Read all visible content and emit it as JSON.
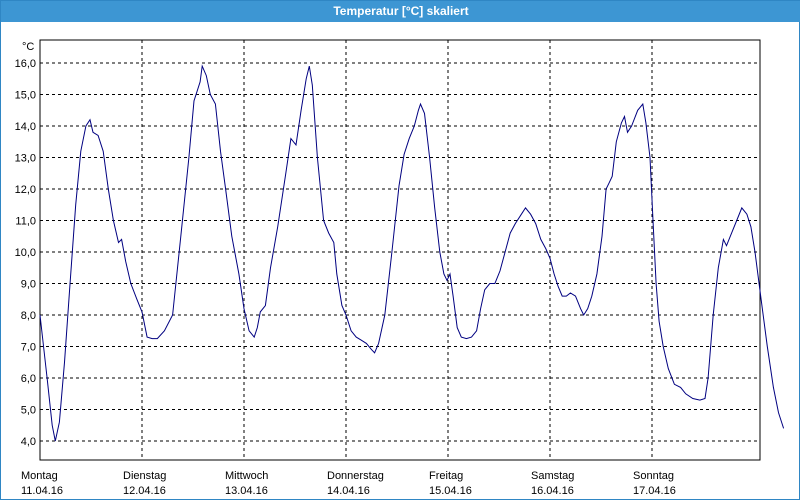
{
  "window": {
    "title": "Temperatur [°C] skaliert"
  },
  "chart_data": {
    "type": "line",
    "title": "Temperatur [°C] skaliert",
    "ylabel": "°C",
    "xlabel": "",
    "ylim": [
      3.4,
      16.5
    ],
    "xlim": [
      0,
      7
    ],
    "grid": true,
    "yticks": [
      "4,0",
      "5,0",
      "6,0",
      "7,0",
      "8,0",
      "9,0",
      "10,0",
      "11,0",
      "12,0",
      "13,0",
      "14,0",
      "15,0",
      "16,0"
    ],
    "days": [
      {
        "name": "Montag",
        "date": "11.04.16"
      },
      {
        "name": "Dienstag",
        "date": "12.04.16"
      },
      {
        "name": "Mittwoch",
        "date": "13.04.16"
      },
      {
        "name": "Donnerstag",
        "date": "14.04.16"
      },
      {
        "name": "Freitag",
        "date": "15.04.16"
      },
      {
        "name": "Samstag",
        "date": "16.04.16"
      },
      {
        "name": "Sonntag",
        "date": "17.04.16"
      }
    ],
    "series": [
      {
        "color": "#000080",
        "points": [
          [
            0.0,
            8.0
          ],
          [
            0.07,
            6.0
          ],
          [
            0.12,
            4.5
          ],
          [
            0.15,
            4.0
          ],
          [
            0.19,
            4.6
          ],
          [
            0.24,
            6.5
          ],
          [
            0.29,
            8.8
          ],
          [
            0.35,
            11.5
          ],
          [
            0.4,
            13.2
          ],
          [
            0.45,
            14.0
          ],
          [
            0.49,
            14.2
          ],
          [
            0.52,
            13.8
          ],
          [
            0.57,
            13.7
          ],
          [
            0.62,
            13.2
          ],
          [
            0.67,
            12.0
          ],
          [
            0.72,
            11.0
          ],
          [
            0.77,
            10.3
          ],
          [
            0.8,
            10.4
          ],
          [
            0.84,
            9.7
          ],
          [
            0.89,
            9.0
          ],
          [
            0.95,
            8.5
          ],
          [
            1.0,
            8.1
          ],
          [
            1.05,
            7.3
          ],
          [
            1.1,
            7.25
          ],
          [
            1.15,
            7.25
          ],
          [
            1.22,
            7.5
          ],
          [
            1.3,
            8.0
          ],
          [
            1.38,
            10.5
          ],
          [
            1.46,
            13.0
          ],
          [
            1.51,
            14.8
          ],
          [
            1.57,
            15.4
          ],
          [
            1.59,
            15.9
          ],
          [
            1.63,
            15.6
          ],
          [
            1.67,
            15.0
          ],
          [
            1.72,
            14.7
          ],
          [
            1.77,
            13.2
          ],
          [
            1.82,
            12.0
          ],
          [
            1.88,
            10.5
          ],
          [
            1.95,
            9.3
          ],
          [
            2.0,
            8.2
          ],
          [
            2.05,
            7.5
          ],
          [
            2.1,
            7.3
          ],
          [
            2.13,
            7.6
          ],
          [
            2.16,
            8.1
          ],
          [
            2.21,
            8.3
          ],
          [
            2.26,
            9.5
          ],
          [
            2.33,
            10.8
          ],
          [
            2.41,
            12.5
          ],
          [
            2.46,
            13.6
          ],
          [
            2.51,
            13.4
          ],
          [
            2.56,
            14.5
          ],
          [
            2.61,
            15.5
          ],
          [
            2.64,
            15.9
          ],
          [
            2.67,
            15.3
          ],
          [
            2.72,
            13.0
          ],
          [
            2.78,
            11.0
          ],
          [
            2.83,
            10.6
          ],
          [
            2.88,
            10.3
          ],
          [
            2.91,
            9.3
          ],
          [
            2.96,
            8.3
          ],
          [
            3.0,
            8.0
          ],
          [
            3.05,
            7.5
          ],
          [
            3.1,
            7.3
          ],
          [
            3.15,
            7.2
          ],
          [
            3.2,
            7.1
          ],
          [
            3.25,
            6.9
          ],
          [
            3.28,
            6.8
          ],
          [
            3.32,
            7.1
          ],
          [
            3.38,
            8.0
          ],
          [
            3.45,
            10.0
          ],
          [
            3.52,
            12.1
          ],
          [
            3.57,
            13.1
          ],
          [
            3.62,
            13.6
          ],
          [
            3.67,
            14.0
          ],
          [
            3.71,
            14.5
          ],
          [
            3.73,
            14.7
          ],
          [
            3.77,
            14.4
          ],
          [
            3.82,
            13.0
          ],
          [
            3.87,
            11.4
          ],
          [
            3.92,
            10.0
          ],
          [
            3.96,
            9.3
          ],
          [
            3.99,
            9.1
          ],
          [
            4.02,
            9.3
          ],
          [
            4.05,
            8.6
          ],
          [
            4.09,
            7.6
          ],
          [
            4.13,
            7.3
          ],
          [
            4.18,
            7.25
          ],
          [
            4.23,
            7.3
          ],
          [
            4.28,
            7.5
          ],
          [
            4.32,
            8.2
          ],
          [
            4.36,
            8.8
          ],
          [
            4.41,
            9.0
          ],
          [
            4.46,
            9.0
          ],
          [
            4.51,
            9.4
          ],
          [
            4.56,
            10.0
          ],
          [
            4.61,
            10.6
          ],
          [
            4.66,
            10.9
          ],
          [
            4.72,
            11.2
          ],
          [
            4.76,
            11.4
          ],
          [
            4.81,
            11.2
          ],
          [
            4.86,
            10.9
          ],
          [
            4.91,
            10.4
          ],
          [
            4.96,
            10.1
          ],
          [
            5.0,
            9.8
          ],
          [
            5.04,
            9.3
          ],
          [
            5.08,
            8.9
          ],
          [
            5.12,
            8.6
          ],
          [
            5.16,
            8.6
          ],
          [
            5.2,
            8.7
          ],
          [
            5.25,
            8.6
          ],
          [
            5.3,
            8.2
          ],
          [
            5.33,
            8.0
          ],
          [
            5.37,
            8.2
          ],
          [
            5.41,
            8.6
          ],
          [
            5.46,
            9.3
          ],
          [
            5.51,
            10.5
          ],
          [
            5.55,
            12.0
          ],
          [
            5.58,
            12.2
          ],
          [
            5.61,
            12.4
          ],
          [
            5.65,
            13.5
          ],
          [
            5.7,
            14.1
          ],
          [
            5.73,
            14.3
          ],
          [
            5.76,
            13.8
          ],
          [
            5.8,
            14.0
          ],
          [
            5.86,
            14.5
          ],
          [
            5.91,
            14.7
          ],
          [
            5.94,
            14.1
          ],
          [
            5.98,
            13.0
          ],
          [
            6.01,
            11.0
          ],
          [
            6.04,
            9.0
          ],
          [
            6.07,
            7.8
          ],
          [
            6.11,
            7.0
          ],
          [
            6.16,
            6.3
          ],
          [
            6.22,
            5.8
          ],
          [
            6.28,
            5.7
          ],
          [
            6.33,
            5.5
          ],
          [
            6.4,
            5.35
          ],
          [
            6.47,
            5.3
          ],
          [
            6.52,
            5.35
          ],
          [
            6.55,
            6.0
          ],
          [
            6.6,
            8.0
          ],
          [
            6.65,
            9.5
          ],
          [
            6.7,
            10.4
          ],
          [
            6.73,
            10.2
          ],
          [
            6.78,
            10.6
          ],
          [
            6.83,
            11.0
          ],
          [
            6.88,
            11.4
          ],
          [
            6.93,
            11.2
          ],
          [
            6.97,
            10.8
          ],
          [
            7.01,
            10.0
          ],
          [
            7.07,
            8.5
          ],
          [
            7.13,
            7.0
          ],
          [
            7.19,
            5.7
          ],
          [
            7.24,
            4.9
          ],
          [
            7.29,
            4.4
          ]
        ]
      }
    ]
  }
}
